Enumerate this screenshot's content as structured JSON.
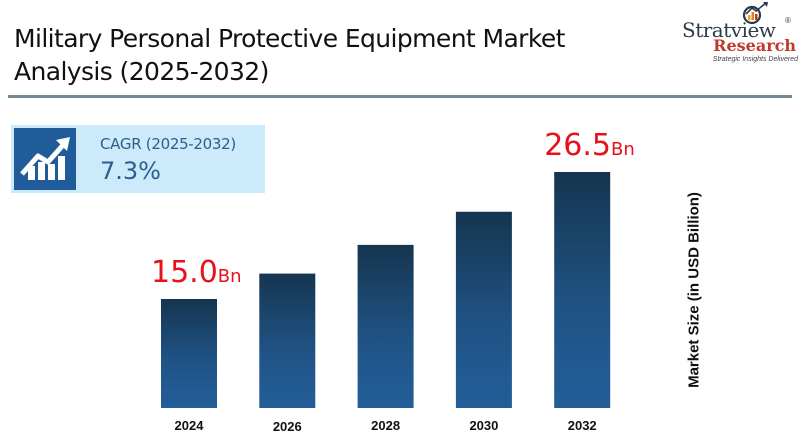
{
  "header": {
    "title_line1": "Military Personal Protective Equipment Market",
    "title_line2": "Analysis (2025-2032)"
  },
  "logo": {
    "brand": "Stratview",
    "registered": "®",
    "sub": "Research",
    "tagline": "Strategic Insights Delivered"
  },
  "cagr": {
    "icon": "growth-chart-icon",
    "label": "CAGR (2025-2032)",
    "value": "7.3%"
  },
  "colors": {
    "bar_top": "#15354f",
    "bar_bottom": "#235e99",
    "value_label": "#e8101a",
    "accent_box": "#cdeafa",
    "icon_bg": "#1f5c99"
  },
  "chart_data": {
    "type": "bar",
    "title": "Military Personal Protective Equipment Market Analysis (2025-2032)",
    "categories": [
      "2024",
      "2026",
      "2028",
      "2030",
      "2032"
    ],
    "values": [
      15.0,
      17.3,
      19.9,
      22.9,
      26.5
    ],
    "values_note": "Only 2024 (15.0) and 2032 (26.5) are labeled; intermediate values estimated from 7.3% CAGR",
    "data_labels": [
      {
        "category": "2024",
        "number": "15.0",
        "unit": "Bn"
      },
      {
        "category": "2032",
        "number": "26.5",
        "unit": "Bn"
      }
    ],
    "xlabel": "",
    "ylabel": "Market Size (in USD Billion)",
    "grid": false,
    "legend": "none"
  }
}
